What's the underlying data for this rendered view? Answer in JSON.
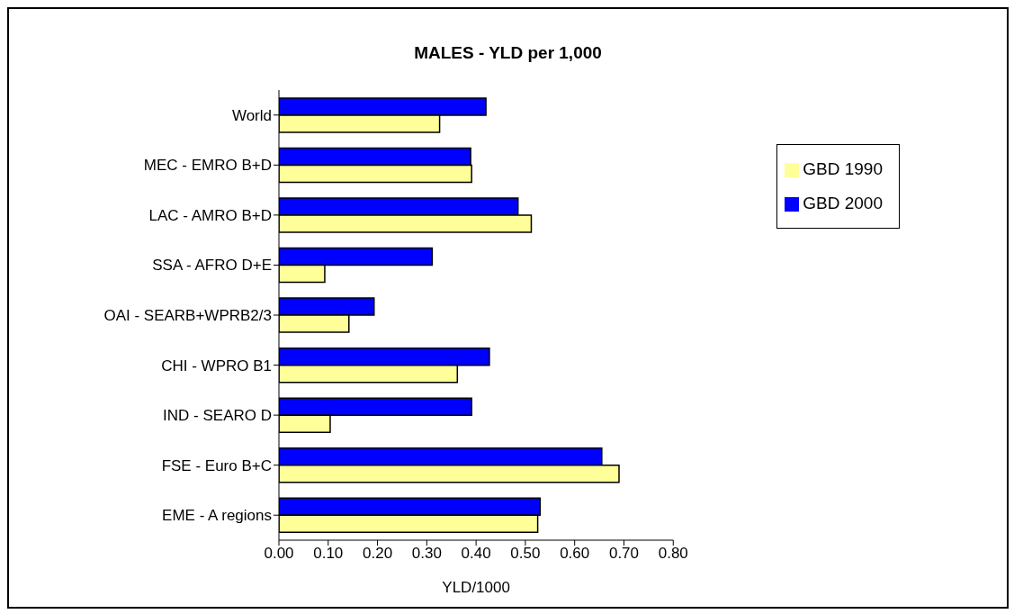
{
  "chart_data": {
    "type": "bar",
    "orientation": "horizontal",
    "title": "MALES - YLD per 1,000",
    "xlabel": "YLD/1000",
    "categories": [
      "World",
      "MEC - EMRO B+D",
      "LAC - AMRO B+D",
      "SSA - AFRO D+E",
      "OAI - SEARB+WPRB2/3",
      "CHI - WPRO B1",
      "IND - SEARO D",
      "FSE - Euro B+C",
      "EME - A regions"
    ],
    "series": [
      {
        "name": "GBD 2000",
        "color": "#0000ff",
        "values": [
          0.42,
          0.389,
          0.485,
          0.311,
          0.193,
          0.427,
          0.391,
          0.655,
          0.53
        ]
      },
      {
        "name": "GBD 1990",
        "color": "#ffff99",
        "values": [
          0.326,
          0.391,
          0.512,
          0.093,
          0.142,
          0.362,
          0.104,
          0.69,
          0.525
        ]
      }
    ],
    "xlim": [
      0,
      0.8
    ],
    "xticks": [
      {
        "value": 0,
        "label": "0.00"
      },
      {
        "value": 0.1,
        "label": "0.10"
      },
      {
        "value": 0.2,
        "label": "0.20"
      },
      {
        "value": 0.3,
        "label": "0.30"
      },
      {
        "value": 0.4,
        "label": "0.40"
      },
      {
        "value": 0.5,
        "label": "0.50"
      },
      {
        "value": 0.6,
        "label": "0.60"
      },
      {
        "value": 0.7,
        "label": "0.70"
      },
      {
        "value": 0.8,
        "label": "0.80"
      }
    ],
    "grid": false,
    "legend": "top right"
  }
}
